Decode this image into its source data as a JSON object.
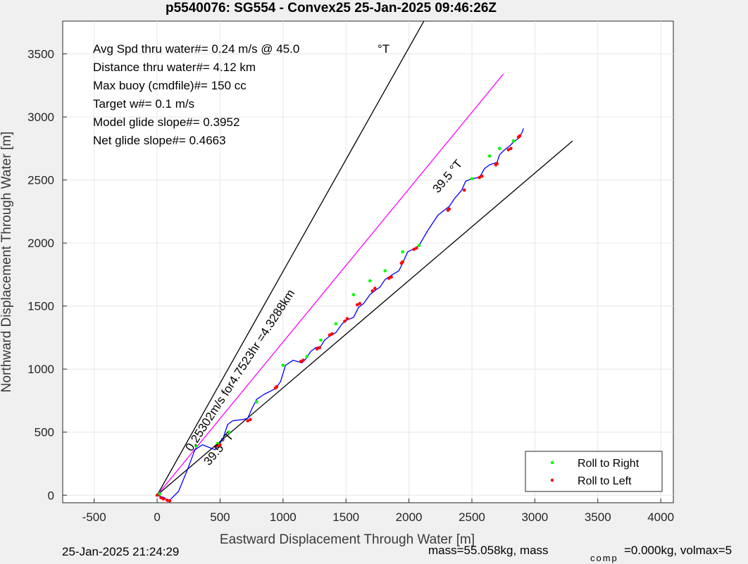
{
  "title": "p5540076: SG554 - Convex25 25-Jan-2025 09:46:26Z",
  "chart_data": {
    "type": "line",
    "xlabel": "Eastward Displacement Through Water [m]",
    "ylabel": "Northward Displacement Through Water [m]",
    "xlim": [
      -750,
      4100
    ],
    "ylim": [
      -60,
      3760
    ],
    "xticks": [
      -500,
      0,
      500,
      1000,
      1500,
      2000,
      2500,
      3000,
      3500,
      4000
    ],
    "yticks": [
      0,
      500,
      1000,
      1500,
      2000,
      2500,
      3000,
      3500
    ],
    "grid": true,
    "legend_position": "bottom-right",
    "annotations_box": [
      "Avg Spd thru water#=  0.24 m/s @  45.0",
      "Distance thru water#=  4.12 km",
      "Max buoy (cmdfile)#= 150 cc",
      "Target w#= 0.1 m/s",
      "Model glide slope#= 0.3952",
      "Net glide slope#= 0.4663"
    ],
    "speed_unit_suffix": "°T",
    "ray_labels": {
      "upper": "39.5 °T",
      "lower": "39.5 °T",
      "along_track": "0.25302m/s for4.7523hr =4.3288km"
    },
    "reference_lines": [
      {
        "name": "bound-left",
        "x": [
          0,
          2130
        ],
        "y": [
          0,
          3780
        ],
        "color": "#000000"
      },
      {
        "name": "bound-right",
        "x": [
          0,
          3300
        ],
        "y": [
          0,
          2810
        ],
        "color": "#000000"
      },
      {
        "name": "target-heading",
        "x": [
          0,
          2750
        ],
        "y": [
          0,
          3340
        ],
        "color": "#ff00ff"
      }
    ],
    "track": {
      "color": "#0000ff",
      "x": [
        0,
        60,
        80,
        100,
        170,
        240,
        300,
        360,
        410,
        460,
        480,
        520,
        560,
        600,
        680,
        720,
        750,
        790,
        850,
        930,
        950,
        980,
        1020,
        1080,
        1150,
        1180,
        1220,
        1260,
        1300,
        1330,
        1370,
        1420,
        1470,
        1510,
        1560,
        1600,
        1640,
        1690,
        1740,
        1770,
        1810,
        1870,
        1920,
        1950,
        1990,
        2050,
        2080,
        2150,
        2230,
        2280,
        2320,
        2360,
        2420,
        2450,
        2500,
        2560,
        2600,
        2640,
        2700,
        2720,
        2760,
        2800,
        2830,
        2870,
        2900,
        2910
      ],
      "y": [
        0,
        -20,
        -50,
        -40,
        30,
        200,
        360,
        400,
        380,
        360,
        390,
        440,
        560,
        590,
        600,
        610,
        680,
        760,
        800,
        840,
        860,
        900,
        1030,
        1070,
        1050,
        1080,
        1140,
        1170,
        1180,
        1230,
        1260,
        1290,
        1360,
        1390,
        1410,
        1490,
        1520,
        1590,
        1630,
        1650,
        1710,
        1750,
        1780,
        1840,
        1930,
        1960,
        1980,
        2100,
        2220,
        2260,
        2290,
        2350,
        2420,
        2490,
        2510,
        2520,
        2590,
        2620,
        2640,
        2700,
        2740,
        2770,
        2800,
        2830,
        2880,
        2910
      ]
    },
    "series": [
      {
        "name": "Roll to Right",
        "color": "#00ff00",
        "x": [
          20,
          310,
          480,
          570,
          790,
          1000,
          1190,
          1300,
          1420,
          1560,
          1690,
          1810,
          1950,
          2080,
          2500,
          2640,
          2720,
          2830
        ],
        "y": [
          10,
          390,
          410,
          500,
          740,
          1030,
          1100,
          1230,
          1360,
          1590,
          1700,
          1780,
          1930,
          1980,
          2510,
          2690,
          2750,
          2810
        ]
      },
      {
        "name": "Roll to Left",
        "color": "#ff0000",
        "x": [
          0,
          30,
          50,
          80,
          100,
          480,
          500,
          720,
          740,
          940,
          950,
          1140,
          1160,
          1270,
          1290,
          1370,
          1390,
          1490,
          1510,
          1590,
          1610,
          1710,
          1730,
          1840,
          1860,
          1940,
          1950,
          2040,
          2060,
          2310,
          2320,
          2440,
          2560,
          2580,
          2690,
          2700,
          2790,
          2810,
          2870,
          2880
        ],
        "y": [
          0,
          -20,
          -30,
          -40,
          -45,
          390,
          400,
          590,
          600,
          850,
          860,
          1060,
          1070,
          1160,
          1170,
          1270,
          1280,
          1380,
          1400,
          1510,
          1520,
          1620,
          1640,
          1720,
          1730,
          1840,
          1850,
          1950,
          1960,
          2260,
          2270,
          2420,
          2520,
          2530,
          2620,
          2630,
          2740,
          2750,
          2840,
          2850
        ]
      }
    ]
  },
  "footer": {
    "timestamp": "25-Jan-2025 21:24:29",
    "mass_text": "mass=55.058kg, mass",
    "subscript": "comp",
    "mass_rest": "=0.000kg, volmax=5"
  }
}
